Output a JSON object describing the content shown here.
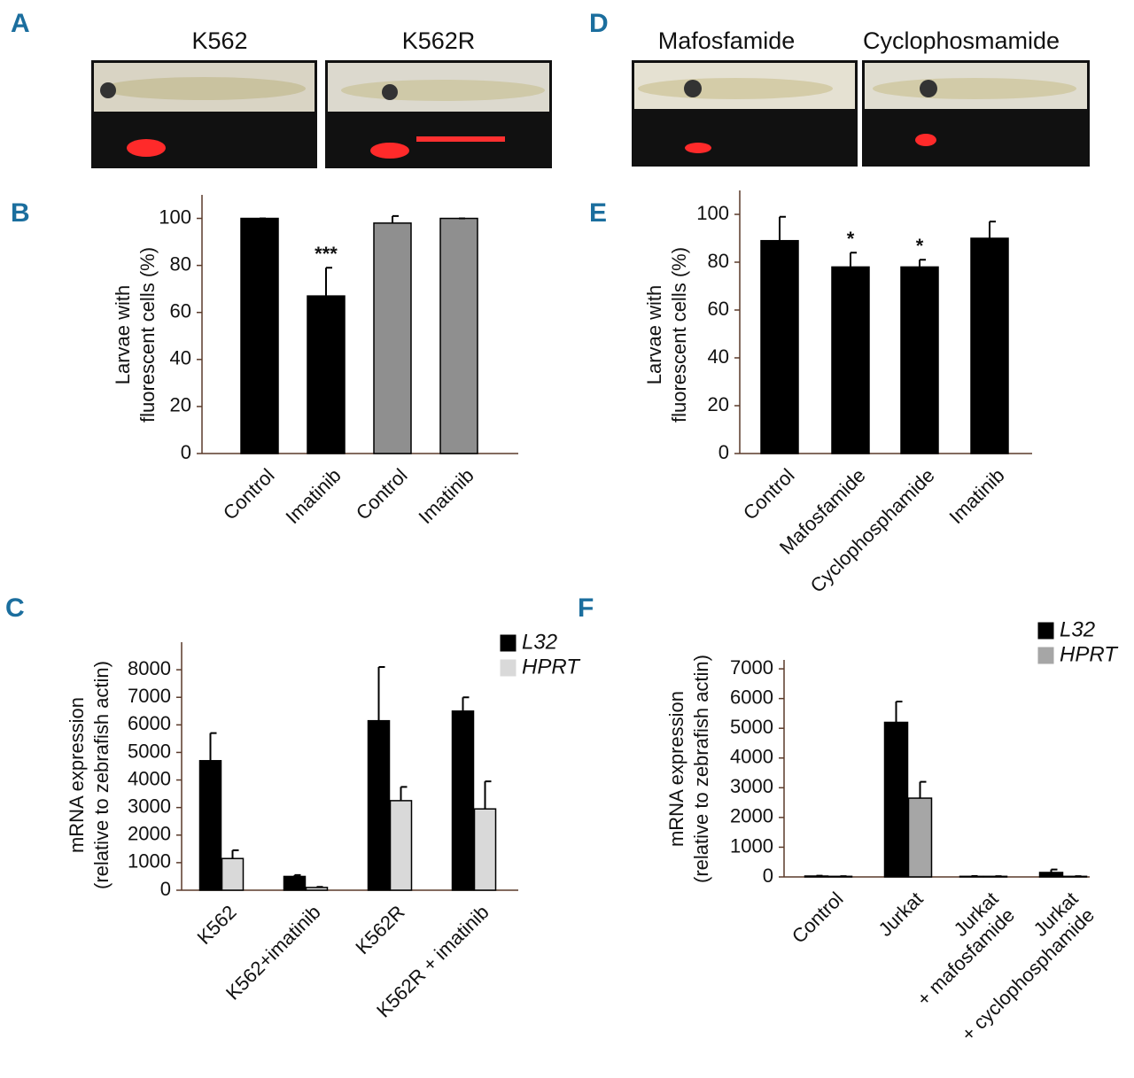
{
  "panel_labels": [
    "A",
    "B",
    "C",
    "D",
    "E",
    "F"
  ],
  "images": [
    {
      "caption": "K562"
    },
    {
      "caption": "K562R"
    },
    {
      "caption": "Mafosfamide"
    },
    {
      "caption": "Cyclophosmamide"
    }
  ],
  "chart_data": [
    {
      "type": "bar",
      "ylabel": [
        "Larvae with",
        "fluorescent cells (%)"
      ],
      "categories": [
        "Control",
        "Imatinib",
        "Control",
        "Imatinib"
      ],
      "values": [
        100,
        67,
        98,
        100
      ],
      "errors": [
        0,
        12,
        3,
        0
      ],
      "colors": [
        "#000000",
        "#000000",
        "#8f8f8f",
        "#8f8f8f"
      ],
      "annotations": [
        {
          "index": 1,
          "text": "***"
        }
      ],
      "ylim": [
        0,
        110
      ],
      "yticks": [
        0,
        20,
        40,
        60,
        80,
        100
      ]
    },
    {
      "type": "grouped_bar",
      "ylabel": [
        "mRNA expression",
        "(relative to zebrafish actin)"
      ],
      "categories": [
        "K562",
        "K562+imatinib",
        "K562R",
        "K562R + imatinib"
      ],
      "series": [
        {
          "name": "L32",
          "color": "#000000",
          "values": [
            4700,
            500,
            6150,
            6500
          ],
          "errors": [
            1000,
            50,
            1950,
            500
          ]
        },
        {
          "name": "HPRT",
          "color": "#d9d9d9",
          "values": [
            1150,
            100,
            3250,
            2950
          ],
          "errors": [
            300,
            20,
            500,
            1000
          ]
        }
      ],
      "ylim": [
        0,
        9000
      ],
      "yticks": [
        0,
        1000,
        2000,
        3000,
        4000,
        5000,
        6000,
        7000,
        8000
      ]
    },
    {
      "type": "bar",
      "ylabel": [
        "Larvae with",
        "fluorescent cells (%)"
      ],
      "categories": [
        "Control",
        "Mafosfamide",
        "Cyclophosphamide",
        "Imatinib"
      ],
      "values": [
        89,
        78,
        78,
        90
      ],
      "errors": [
        10,
        6,
        3,
        7
      ],
      "colors": [
        "#000000",
        "#000000",
        "#000000",
        "#000000"
      ],
      "annotations": [
        {
          "index": 1,
          "text": "*"
        },
        {
          "index": 2,
          "text": "*"
        }
      ],
      "ylim": [
        0,
        110
      ],
      "yticks": [
        0,
        20,
        40,
        60,
        80,
        100
      ]
    },
    {
      "type": "grouped_bar",
      "ylabel": [
        "mRNA expression",
        "(relative to zebrafish actin)"
      ],
      "categories": [
        [
          "Control"
        ],
        [
          "Jurkat"
        ],
        [
          "Jurkat",
          "+ mafosfamide"
        ],
        [
          "Jurkat",
          "+ cyclophosphamide"
        ]
      ],
      "series": [
        {
          "name": "L32",
          "color": "#000000",
          "values": [
            30,
            5200,
            20,
            150
          ],
          "errors": [
            10,
            700,
            10,
            100
          ]
        },
        {
          "name": "HPRT",
          "color": "#a6a6a6",
          "values": [
            20,
            2650,
            20,
            20
          ],
          "errors": [
            5,
            550,
            5,
            5
          ]
        }
      ],
      "ylim": [
        0,
        7300
      ],
      "yticks": [
        0,
        1000,
        2000,
        3000,
        4000,
        5000,
        6000,
        7000
      ]
    }
  ]
}
